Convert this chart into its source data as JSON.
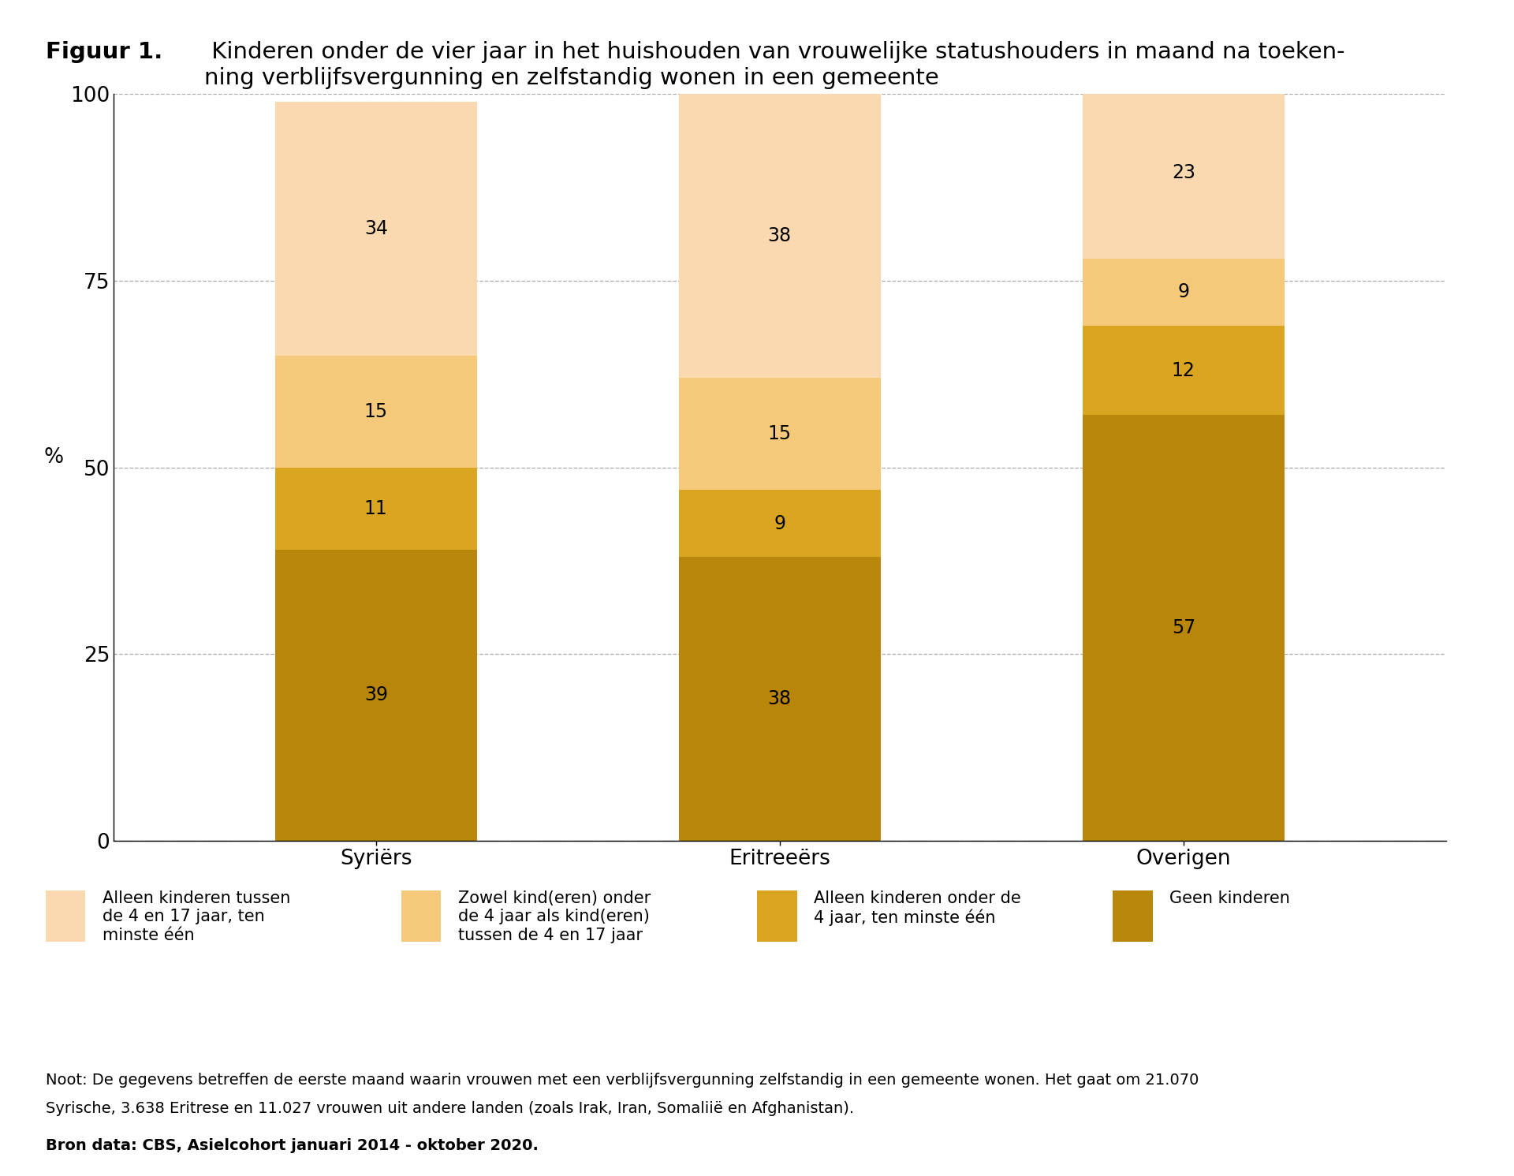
{
  "title_bold": "Figuur 1.",
  "title_rest": " Kinderen onder de vier jaar in het huishouden van vrouwelijke statushouders in maand na toeken-\nning verblijfsvergunning en zelfstandig wonen in een gemeente",
  "categories": [
    "Syriërs",
    "Eritreeërs",
    "Overigen"
  ],
  "series": {
    "geen_kinderen": [
      39,
      38,
      57
    ],
    "alleen_onder_4": [
      11,
      9,
      12
    ],
    "zowel": [
      15,
      15,
      9
    ],
    "alleen_4_17": [
      34,
      38,
      23
    ]
  },
  "colors": {
    "geen_kinderen": "#B8860B",
    "alleen_onder_4": "#DAA520",
    "zowel": "#F5C97A",
    "alleen_4_17": "#FAD9B0"
  },
  "ylabel": "%",
  "ylim": [
    0,
    100
  ],
  "yticks": [
    0,
    25,
    50,
    75,
    100
  ],
  "legend_labels": [
    "Alleen kinderen tussen\nde 4 en 17 jaar, ten\nminste één",
    "Zowel kind(eren) onder\nde 4 jaar als kind(eren)\ntussen de 4 en 17 jaar",
    "Alleen kinderen onder de\n4 jaar, ten minste één",
    "Geen kinderen"
  ],
  "legend_colors": [
    "#FAD9B0",
    "#F5C97A",
    "#DAA520",
    "#B8860B"
  ],
  "note_line1": "Noot: De gegevens betreffen de eerste maand waarin vrouwen met een verblijfsvergunning zelfstandig in een gemeente wonen. Het gaat om 21.070",
  "note_line2": "Syrische, 3.638 Eritrese en 11.027 vrouwen uit andere landen (zoals Irak, Iran, Somaliië en Afghanistan).",
  "source": "Bron data: CBS, Asielcohort januari 2014 - oktober 2020.",
  "background_color": "#ffffff",
  "grid_color": "#aaaaaa",
  "bar_width": 0.5,
  "figsize": [
    19.2,
    14.91
  ],
  "dpi": 100
}
